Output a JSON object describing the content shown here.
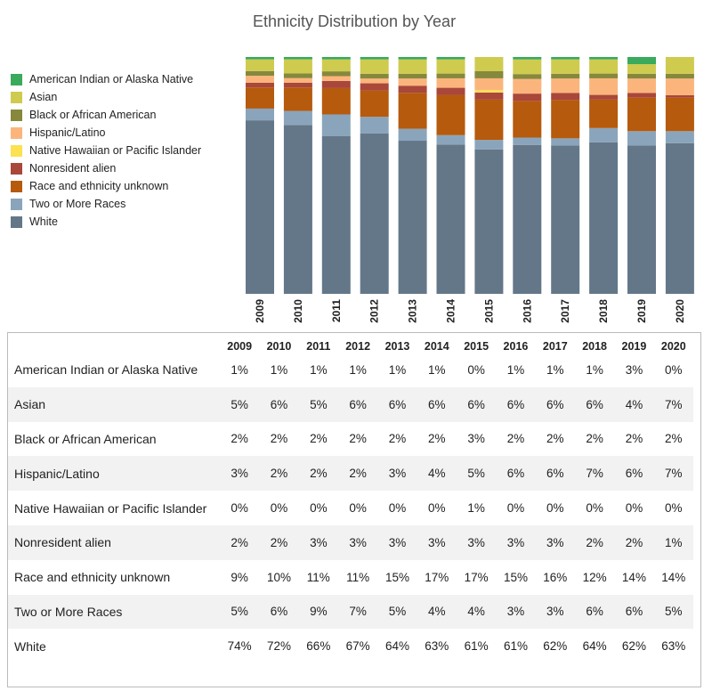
{
  "title": "Ethnicity Distribution by Year",
  "legend": [
    {
      "label": "American Indian or Alaska Native",
      "color": "#3aaa5c"
    },
    {
      "label": "Asian",
      "color": "#cfcb4f"
    },
    {
      "label": "Black or African American",
      "color": "#86883c"
    },
    {
      "label": "Hispanic/Latino",
      "color": "#fbb57c"
    },
    {
      "label": "Native Hawaiian or Pacific Islander",
      "color": "#fce150"
    },
    {
      "label": "Nonresident alien",
      "color": "#a9473a"
    },
    {
      "label": "Race and ethnicity unknown",
      "color": "#b65a0d"
    },
    {
      "label": "Two or More Races",
      "color": "#8aa5bb"
    },
    {
      "label": "White",
      "color": "#637789"
    }
  ],
  "chart_data": {
    "type": "bar",
    "stacked": true,
    "title": "Ethnicity Distribution by Year",
    "categories": [
      "2009",
      "2010",
      "2011",
      "2012",
      "2013",
      "2014",
      "2015",
      "2016",
      "2017",
      "2018",
      "2019",
      "2020"
    ],
    "unit": "%",
    "ylim": [
      0,
      100
    ],
    "legend_position": "left",
    "grid": false,
    "series": [
      {
        "name": "White",
        "color": "#637789",
        "values": [
          74,
          72,
          66,
          67,
          64,
          63,
          61,
          61,
          62,
          64,
          62,
          63
        ]
      },
      {
        "name": "Two or More Races",
        "color": "#8aa5bb",
        "values": [
          5,
          6,
          9,
          7,
          5,
          4,
          4,
          3,
          3,
          6,
          6,
          5
        ]
      },
      {
        "name": "Race and ethnicity unknown",
        "color": "#b65a0d",
        "values": [
          9,
          10,
          11,
          11,
          15,
          17,
          17,
          15,
          16,
          12,
          14,
          14
        ]
      },
      {
        "name": "Nonresident alien",
        "color": "#a9473a",
        "values": [
          2,
          2,
          3,
          3,
          3,
          3,
          3,
          3,
          3,
          2,
          2,
          1
        ]
      },
      {
        "name": "Native Hawaiian or Pacific Islander",
        "color": "#fce150",
        "values": [
          0,
          0,
          0,
          0,
          0,
          0,
          1,
          0,
          0,
          0,
          0,
          0
        ]
      },
      {
        "name": "Hispanic/Latino",
        "color": "#fbb57c",
        "values": [
          3,
          2,
          2,
          2,
          3,
          4,
          5,
          6,
          6,
          7,
          6,
          7
        ]
      },
      {
        "name": "Black or African American",
        "color": "#86883c",
        "values": [
          2,
          2,
          2,
          2,
          2,
          2,
          3,
          2,
          2,
          2,
          2,
          2
        ]
      },
      {
        "name": "Asian",
        "color": "#cfcb4f",
        "values": [
          5,
          6,
          5,
          6,
          6,
          6,
          6,
          6,
          6,
          6,
          4,
          7
        ]
      },
      {
        "name": "American Indian or Alaska Native",
        "color": "#3aaa5c",
        "values": [
          1,
          1,
          1,
          1,
          1,
          1,
          0,
          1,
          1,
          1,
          3,
          0
        ]
      }
    ]
  },
  "table": {
    "years": [
      "2009",
      "2010",
      "2011",
      "2012",
      "2013",
      "2014",
      "2015",
      "2016",
      "2017",
      "2018",
      "2019",
      "2020"
    ],
    "rows": [
      {
        "name": "American Indian or Alaska Native",
        "values": [
          "1%",
          "1%",
          "1%",
          "1%",
          "1%",
          "1%",
          "0%",
          "1%",
          "1%",
          "1%",
          "3%",
          "0%"
        ]
      },
      {
        "name": "Asian",
        "values": [
          "5%",
          "6%",
          "5%",
          "6%",
          "6%",
          "6%",
          "6%",
          "6%",
          "6%",
          "6%",
          "4%",
          "7%"
        ]
      },
      {
        "name": "Black or African American",
        "values": [
          "2%",
          "2%",
          "2%",
          "2%",
          "2%",
          "2%",
          "3%",
          "2%",
          "2%",
          "2%",
          "2%",
          "2%"
        ]
      },
      {
        "name": "Hispanic/Latino",
        "values": [
          "3%",
          "2%",
          "2%",
          "2%",
          "3%",
          "4%",
          "5%",
          "6%",
          "6%",
          "7%",
          "6%",
          "7%"
        ]
      },
      {
        "name": "Native Hawaiian or Pacific Islander",
        "values": [
          "0%",
          "0%",
          "0%",
          "0%",
          "0%",
          "0%",
          "1%",
          "0%",
          "0%",
          "0%",
          "0%",
          "0%"
        ]
      },
      {
        "name": "Nonresident alien",
        "values": [
          "2%",
          "2%",
          "3%",
          "3%",
          "3%",
          "3%",
          "3%",
          "3%",
          "3%",
          "2%",
          "2%",
          "1%"
        ]
      },
      {
        "name": "Race and ethnicity unknown",
        "values": [
          "9%",
          "10%",
          "11%",
          "11%",
          "15%",
          "17%",
          "17%",
          "15%",
          "16%",
          "12%",
          "14%",
          "14%"
        ]
      },
      {
        "name": "Two or More Races",
        "values": [
          "5%",
          "6%",
          "9%",
          "7%",
          "5%",
          "4%",
          "4%",
          "3%",
          "3%",
          "6%",
          "6%",
          "5%"
        ]
      },
      {
        "name": "White",
        "values": [
          "74%",
          "72%",
          "66%",
          "67%",
          "64%",
          "63%",
          "61%",
          "61%",
          "62%",
          "64%",
          "62%",
          "63%"
        ]
      }
    ]
  }
}
